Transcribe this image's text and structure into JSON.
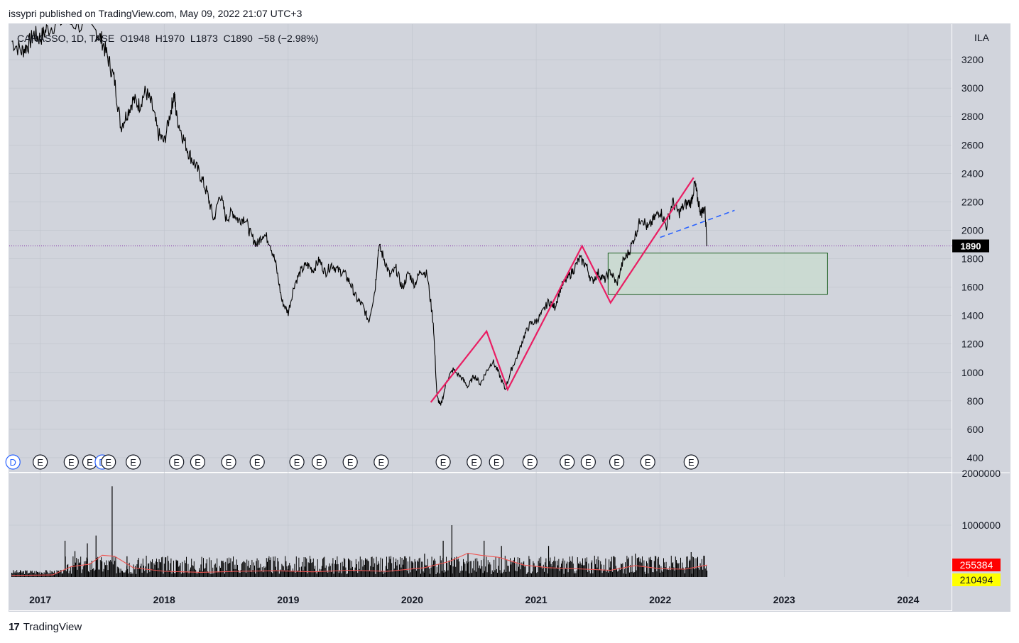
{
  "header": {
    "published_text": "issypri published on TradingView.com, May 09, 2022 21:07 UTC+3"
  },
  "legend": {
    "text": "CARASSO, 1D, TASE  O1948  H1970  L1873  C1890  −58 (−2.98%)"
  },
  "footer": {
    "brand": "TradingView",
    "logo_glyph": "17"
  },
  "colors": {
    "pane_bg": "#d1d4dc",
    "price_line": "#000000",
    "pattern_line": "#e91e63",
    "trend_line": "#2962ff",
    "box_fill": "#c8dccf",
    "box_stroke": "#1b5e20",
    "current_price_line": "#7b1fa2",
    "volume_ma": "#ef5350",
    "badge_red": "#ff0000",
    "badge_yellow": "#ffff00"
  },
  "chart_data": {
    "type": "line",
    "symbol": "CARASSO",
    "interval": "1D",
    "exchange": "TASE",
    "ohlc_last": {
      "open": 1948,
      "high": 1970,
      "low": 1873,
      "close": 1890,
      "change": -58,
      "change_pct": "−2.98%"
    },
    "currency_label": "ILA",
    "y_ticks": [
      400,
      600,
      800,
      1000,
      1200,
      1400,
      1600,
      1800,
      2000,
      2200,
      2400,
      2600,
      2800,
      3000,
      3200
    ],
    "y_range": [
      300,
      3450
    ],
    "x_ticks": [
      "2017",
      "2018",
      "2019",
      "2020",
      "2021",
      "2022",
      "2023",
      "2024"
    ],
    "x_range": [
      2016.75,
      2024.35
    ],
    "current_price_label": "1890",
    "price_series": [
      [
        2016.77,
        3330
      ],
      [
        2016.85,
        3260
      ],
      [
        2016.9,
        3300
      ],
      [
        2016.95,
        3380
      ],
      [
        2017.0,
        3350
      ],
      [
        2017.05,
        3410
      ],
      [
        2017.15,
        3470
      ],
      [
        2017.3,
        3450
      ],
      [
        2017.45,
        3400
      ],
      [
        2017.5,
        3330
      ],
      [
        2017.55,
        3200
      ],
      [
        2017.6,
        3050
      ],
      [
        2017.65,
        2730
      ],
      [
        2017.7,
        2820
      ],
      [
        2017.75,
        2920
      ],
      [
        2017.8,
        2880
      ],
      [
        2017.85,
        2980
      ],
      [
        2017.9,
        2880
      ],
      [
        2017.95,
        2680
      ],
      [
        2018.0,
        2620
      ],
      [
        2018.05,
        2830
      ],
      [
        2018.08,
        2960
      ],
      [
        2018.1,
        2800
      ],
      [
        2018.15,
        2660
      ],
      [
        2018.2,
        2540
      ],
      [
        2018.25,
        2460
      ],
      [
        2018.3,
        2370
      ],
      [
        2018.35,
        2250
      ],
      [
        2018.4,
        2070
      ],
      [
        2018.45,
        2260
      ],
      [
        2018.5,
        2080
      ],
      [
        2018.55,
        2130
      ],
      [
        2018.6,
        2070
      ],
      [
        2018.65,
        2090
      ],
      [
        2018.7,
        1960
      ],
      [
        2018.75,
        1900
      ],
      [
        2018.8,
        1980
      ],
      [
        2018.85,
        1920
      ],
      [
        2018.9,
        1760
      ],
      [
        2018.95,
        1500
      ],
      [
        2019.0,
        1420
      ],
      [
        2019.05,
        1620
      ],
      [
        2019.1,
        1710
      ],
      [
        2019.15,
        1760
      ],
      [
        2019.2,
        1720
      ],
      [
        2019.25,
        1790
      ],
      [
        2019.3,
        1700
      ],
      [
        2019.35,
        1760
      ],
      [
        2019.4,
        1720
      ],
      [
        2019.45,
        1700
      ],
      [
        2019.5,
        1630
      ],
      [
        2019.55,
        1520
      ],
      [
        2019.6,
        1470
      ],
      [
        2019.65,
        1360
      ],
      [
        2019.7,
        1580
      ],
      [
        2019.73,
        1890
      ],
      [
        2019.77,
        1810
      ],
      [
        2019.82,
        1680
      ],
      [
        2019.87,
        1730
      ],
      [
        2019.92,
        1590
      ],
      [
        2019.97,
        1700
      ],
      [
        2020.02,
        1620
      ],
      [
        2020.07,
        1720
      ],
      [
        2020.12,
        1690
      ],
      [
        2020.17,
        1350
      ],
      [
        2020.2,
        830
      ],
      [
        2020.23,
        760
      ],
      [
        2020.28,
        950
      ],
      [
        2020.33,
        1020
      ],
      [
        2020.4,
        960
      ],
      [
        2020.45,
        900
      ],
      [
        2020.5,
        980
      ],
      [
        2020.55,
        920
      ],
      [
        2020.6,
        1010
      ],
      [
        2020.65,
        1080
      ],
      [
        2020.7,
        990
      ],
      [
        2020.75,
        880
      ],
      [
        2020.8,
        1020
      ],
      [
        2020.85,
        1120
      ],
      [
        2020.9,
        1250
      ],
      [
        2020.95,
        1340
      ],
      [
        2021.0,
        1360
      ],
      [
        2021.05,
        1420
      ],
      [
        2021.1,
        1500
      ],
      [
        2021.15,
        1460
      ],
      [
        2021.2,
        1600
      ],
      [
        2021.25,
        1660
      ],
      [
        2021.3,
        1720
      ],
      [
        2021.35,
        1800
      ],
      [
        2021.4,
        1760
      ],
      [
        2021.45,
        1640
      ],
      [
        2021.5,
        1700
      ],
      [
        2021.55,
        1650
      ],
      [
        2021.6,
        1710
      ],
      [
        2021.65,
        1620
      ],
      [
        2021.7,
        1780
      ],
      [
        2021.75,
        1850
      ],
      [
        2021.8,
        1970
      ],
      [
        2021.85,
        2100
      ],
      [
        2021.9,
        2010
      ],
      [
        2021.95,
        2080
      ],
      [
        2022.0,
        2140
      ],
      [
        2022.05,
        2030
      ],
      [
        2022.1,
        2200
      ],
      [
        2022.15,
        2120
      ],
      [
        2022.2,
        2180
      ],
      [
        2022.25,
        2200
      ],
      [
        2022.28,
        2330
      ],
      [
        2022.3,
        2230
      ],
      [
        2022.33,
        2120
      ],
      [
        2022.36,
        2160
      ],
      [
        2022.38,
        1890
      ]
    ],
    "pattern_line": [
      [
        2020.15,
        790
      ],
      [
        2020.6,
        1290
      ],
      [
        2020.77,
        880
      ],
      [
        2021.37,
        1890
      ],
      [
        2021.6,
        1490
      ],
      [
        2022.27,
        2370
      ]
    ],
    "trend_line_dashed": [
      [
        2022.0,
        1950
      ],
      [
        2022.6,
        2140
      ]
    ],
    "zone_box": {
      "x_start": 2021.58,
      "x_end": 2023.35,
      "y_low": 1550,
      "y_high": 1840
    },
    "earnings_markers": [
      {
        "x": 2016.78,
        "label": "D"
      },
      {
        "x": 2017.0,
        "label": "E"
      },
      {
        "x": 2017.25,
        "label": "E"
      },
      {
        "x": 2017.4,
        "label": "E"
      },
      {
        "x": 2017.5,
        "label": "D"
      },
      {
        "x": 2017.55,
        "label": "E"
      },
      {
        "x": 2017.75,
        "label": "E"
      },
      {
        "x": 2018.1,
        "label": "E"
      },
      {
        "x": 2018.27,
        "label": "E"
      },
      {
        "x": 2018.52,
        "label": "E"
      },
      {
        "x": 2018.75,
        "label": "E"
      },
      {
        "x": 2019.07,
        "label": "E"
      },
      {
        "x": 2019.25,
        "label": "E"
      },
      {
        "x": 2019.5,
        "label": "E"
      },
      {
        "x": 2019.75,
        "label": "E"
      },
      {
        "x": 2020.25,
        "label": "E"
      },
      {
        "x": 2020.5,
        "label": "E"
      },
      {
        "x": 2020.68,
        "label": "E"
      },
      {
        "x": 2020.95,
        "label": "E"
      },
      {
        "x": 2021.25,
        "label": "E"
      },
      {
        "x": 2021.42,
        "label": "E"
      },
      {
        "x": 2021.65,
        "label": "E"
      },
      {
        "x": 2021.9,
        "label": "E"
      },
      {
        "x": 2022.25,
        "label": "E"
      }
    ],
    "volume": {
      "y_ticks": [
        1000000,
        2000000
      ],
      "y_range": [
        0,
        2000000
      ],
      "last_volume_label": "255384",
      "volume_ma_label": "210494",
      "spikes": [
        [
          2017.2,
          700000
        ],
        [
          2017.28,
          500000
        ],
        [
          2017.38,
          650000
        ],
        [
          2017.45,
          800000
        ],
        [
          2017.58,
          1750000
        ],
        [
          2017.7,
          400000
        ],
        [
          2018.1,
          300000
        ],
        [
          2019.0,
          150000
        ],
        [
          2020.1,
          450000
        ],
        [
          2020.25,
          700000
        ],
        [
          2020.32,
          1000000
        ],
        [
          2020.45,
          450000
        ],
        [
          2020.58,
          700000
        ],
        [
          2020.72,
          600000
        ],
        [
          2021.1,
          600000
        ],
        [
          2021.6,
          300000
        ],
        [
          2021.8,
          450000
        ],
        [
          2022.25,
          480000
        ]
      ],
      "ma_series": [
        [
          2016.77,
          30000
        ],
        [
          2017.1,
          40000
        ],
        [
          2017.25,
          200000
        ],
        [
          2017.4,
          250000
        ],
        [
          2017.5,
          420000
        ],
        [
          2017.6,
          400000
        ],
        [
          2017.75,
          180000
        ],
        [
          2018.0,
          110000
        ],
        [
          2018.3,
          90000
        ],
        [
          2018.6,
          110000
        ],
        [
          2018.9,
          120000
        ],
        [
          2019.2,
          100000
        ],
        [
          2019.5,
          130000
        ],
        [
          2019.8,
          110000
        ],
        [
          2020.1,
          180000
        ],
        [
          2020.3,
          300000
        ],
        [
          2020.45,
          460000
        ],
        [
          2020.55,
          420000
        ],
        [
          2020.7,
          380000
        ],
        [
          2020.9,
          230000
        ],
        [
          2021.1,
          180000
        ],
        [
          2021.4,
          150000
        ],
        [
          2021.6,
          130000
        ],
        [
          2021.8,
          220000
        ],
        [
          2022.0,
          160000
        ],
        [
          2022.2,
          150000
        ],
        [
          2022.38,
          230000
        ]
      ]
    }
  }
}
